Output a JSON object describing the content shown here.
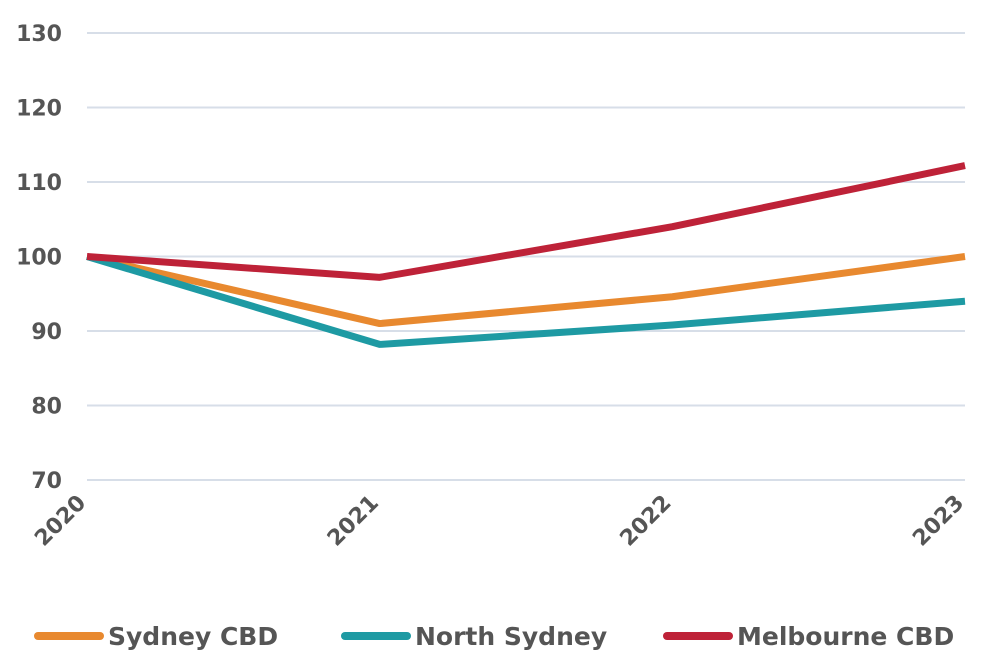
{
  "chart_data": {
    "type": "line",
    "title": "",
    "xlabel": "",
    "ylabel": "",
    "categories": [
      "2020",
      "2021",
      "2022",
      "2023"
    ],
    "ylim": [
      70,
      130
    ],
    "yticks": [
      "70",
      "80",
      "90",
      "100",
      "110",
      "120",
      "130"
    ],
    "grid": true,
    "legend_position": "bottom",
    "series": [
      {
        "name": "Sydney CBD",
        "color": "#E8892F",
        "values": [
          100,
          91,
          94.6,
          100
        ]
      },
      {
        "name": "North Sydney",
        "color": "#1E9AA3",
        "values": [
          100,
          88.2,
          90.8,
          94
        ]
      },
      {
        "name": "Melbourne CBD",
        "color": "#BE2238",
        "values": [
          100,
          97.2,
          104,
          112.2
        ]
      }
    ]
  }
}
